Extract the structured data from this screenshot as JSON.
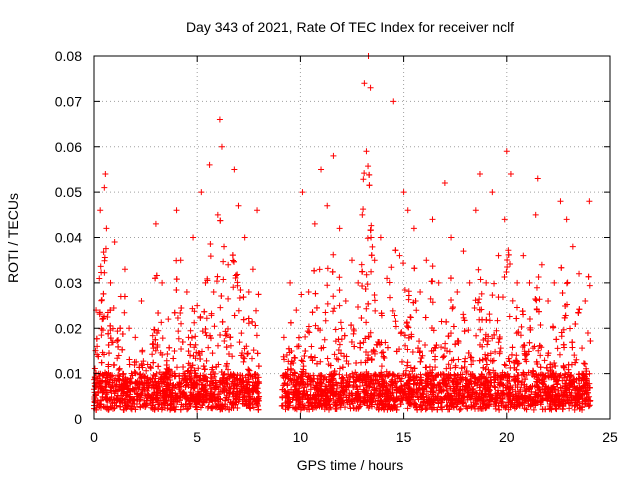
{
  "chart_data": {
    "type": "scatter",
    "title": "Day 343 of 2021, Rate Of TEC Index for receiver nclf",
    "xlabel": "GPS time / hours",
    "ylabel": "ROTI / TECUs",
    "xlim": [
      0,
      25
    ],
    "ylim": [
      0,
      0.08
    ],
    "xticks": [
      0,
      5,
      10,
      15,
      20,
      25
    ],
    "xtick_labels": [
      "0",
      "5",
      "10",
      "15",
      "20",
      "25"
    ],
    "yticks": [
      0,
      0.01,
      0.02,
      0.03,
      0.04,
      0.05,
      0.06,
      0.07,
      0.08
    ],
    "ytick_labels": [
      "0",
      "0.01",
      "0.02",
      "0.03",
      "0.04",
      "0.05",
      "0.06",
      "0.07",
      "0.08"
    ],
    "grid": true,
    "marker": "plus",
    "color": "#ff0000",
    "data_gap_hours": [
      8.0,
      9.1
    ],
    "series": [
      {
        "name": "ROTI",
        "x": [
          0.05,
          0.1,
          0.15,
          0.2,
          0.3,
          0.4,
          0.5,
          0.55,
          0.6,
          0.7,
          0.8,
          1.0,
          1.2,
          1.3,
          1.5,
          1.7,
          2.0,
          2.3,
          2.6,
          3.0,
          3.3,
          3.6,
          3.9,
          4.0,
          4.2,
          4.5,
          4.8,
          5.0,
          5.2,
          5.4,
          5.6,
          5.8,
          6.0,
          6.1,
          6.2,
          6.3,
          6.5,
          6.8,
          7.0,
          7.3,
          7.5,
          7.7,
          7.9,
          9.2,
          9.5,
          9.8,
          10.1,
          10.4,
          10.7,
          11.0,
          11.3,
          11.6,
          11.9,
          12.2,
          12.5,
          12.8,
          13.0,
          13.1,
          13.2,
          13.3,
          13.4,
          13.6,
          13.9,
          14.2,
          14.5,
          14.8,
          15.0,
          15.2,
          15.5,
          15.8,
          16.1,
          16.4,
          16.7,
          17.0,
          17.3,
          17.6,
          17.9,
          18.2,
          18.5,
          18.7,
          19.0,
          19.3,
          19.6,
          19.9,
          20.0,
          20.2,
          20.5,
          20.8,
          21.1,
          21.4,
          21.5,
          21.7,
          22.0,
          22.3,
          22.6,
          22.9,
          23.2,
          23.5,
          23.8,
          24.0
        ],
        "y": [
          0.009,
          0.024,
          0.016,
          0.006,
          0.046,
          0.022,
          0.051,
          0.054,
          0.042,
          0.012,
          0.03,
          0.039,
          0.014,
          0.027,
          0.033,
          0.02,
          0.018,
          0.026,
          0.012,
          0.043,
          0.03,
          0.022,
          0.015,
          0.046,
          0.035,
          0.028,
          0.04,
          0.025,
          0.05,
          0.03,
          0.056,
          0.028,
          0.045,
          0.066,
          0.06,
          0.038,
          0.034,
          0.055,
          0.047,
          0.04,
          0.028,
          0.033,
          0.046,
          0.018,
          0.03,
          0.024,
          0.05,
          0.028,
          0.043,
          0.055,
          0.047,
          0.058,
          0.042,
          0.026,
          0.035,
          0.03,
          0.045,
          0.074,
          0.059,
          0.08,
          0.073,
          0.035,
          0.04,
          0.031,
          0.07,
          0.036,
          0.05,
          0.046,
          0.042,
          0.028,
          0.035,
          0.044,
          0.03,
          0.052,
          0.04,
          0.028,
          0.037,
          0.03,
          0.046,
          0.054,
          0.03,
          0.05,
          0.036,
          0.044,
          0.059,
          0.054,
          0.03,
          0.036,
          0.03,
          0.045,
          0.053,
          0.034,
          0.026,
          0.03,
          0.048,
          0.044,
          0.038,
          0.032,
          0.026,
          0.048
        ]
      }
    ]
  }
}
